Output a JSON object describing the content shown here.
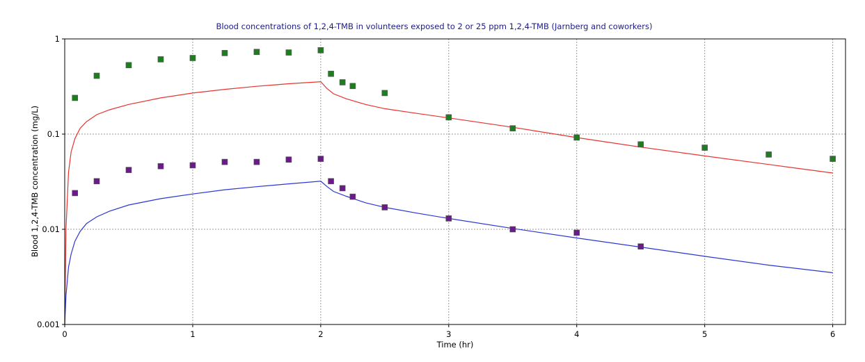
{
  "chart_data": {
    "type": "scatter",
    "title": "Blood concentrations of 1,2,4-TMB in volunteers exposed to 2 or 25 ppm 1,2,4-TMB (Jarnberg and coworkers)",
    "xlabel": "Time (hr)",
    "ylabel": "Blood 1,2,4-TMB concentration (mg/L)",
    "xlim": [
      0,
      6.1
    ],
    "ylim": [
      0.001,
      1
    ],
    "yscale": "log",
    "grid": true,
    "x_ticks": [
      0,
      1,
      2,
      3,
      4,
      5,
      6
    ],
    "x_tick_labels": [
      "0",
      "1",
      "2",
      "3",
      "4",
      "5",
      "6"
    ],
    "y_ticks": [
      0.001,
      0.01,
      0.1,
      1
    ],
    "y_tick_labels": [
      "0.001",
      "0.01",
      "0.1",
      "1"
    ],
    "series": [
      {
        "kind": "line",
        "color": "#e8322e",
        "x": [
          0,
          0.01,
          0.03,
          0.05,
          0.08,
          0.12,
          0.17,
          0.25,
          0.35,
          0.5,
          0.75,
          1.0,
          1.25,
          1.5,
          1.75,
          2.0,
          2.05,
          2.1,
          2.2,
          2.35,
          2.5,
          2.75,
          3.0,
          3.5,
          4.0,
          4.5,
          5.0,
          5.5,
          6.0
        ],
        "y": [
          0.001,
          0.01,
          0.04,
          0.065,
          0.09,
          0.115,
          0.135,
          0.16,
          0.18,
          0.205,
          0.24,
          0.27,
          0.295,
          0.318,
          0.338,
          0.355,
          0.3,
          0.265,
          0.235,
          0.205,
          0.185,
          0.165,
          0.148,
          0.118,
          0.092,
          0.073,
          0.059,
          0.048,
          0.039
        ]
      },
      {
        "kind": "line",
        "color": "#2b35d6",
        "x": [
          0,
          0.01,
          0.03,
          0.05,
          0.08,
          0.12,
          0.17,
          0.25,
          0.35,
          0.5,
          0.75,
          1.0,
          1.25,
          1.5,
          1.75,
          2.0,
          2.05,
          2.1,
          2.2,
          2.35,
          2.5,
          2.75,
          3.0,
          3.5,
          4.0,
          4.5,
          5.0,
          5.5,
          6.0
        ],
        "y": [
          0.001,
          0.002,
          0.004,
          0.0055,
          0.0075,
          0.0095,
          0.0115,
          0.0135,
          0.0155,
          0.018,
          0.021,
          0.0235,
          0.026,
          0.028,
          0.03,
          0.032,
          0.028,
          0.025,
          0.0222,
          0.019,
          0.017,
          0.0148,
          0.013,
          0.0102,
          0.0081,
          0.0065,
          0.0052,
          0.0042,
          0.0035
        ]
      },
      {
        "kind": "points",
        "color": "#1e7d1e",
        "x": [
          0.08,
          0.25,
          0.5,
          0.75,
          1.0,
          1.25,
          1.5,
          1.75,
          2.0,
          2.08,
          2.17,
          2.25,
          2.5,
          3.0,
          3.5,
          4.0,
          4.5,
          5.0,
          5.5,
          6.0
        ],
        "y": [
          0.24,
          0.41,
          0.53,
          0.61,
          0.63,
          0.71,
          0.73,
          0.72,
          0.76,
          0.43,
          0.35,
          0.32,
          0.27,
          0.15,
          0.115,
          0.092,
          0.078,
          0.072,
          0.061,
          0.055
        ]
      },
      {
        "kind": "points",
        "color": "#6a1a8a",
        "x": [
          0.08,
          0.25,
          0.5,
          0.75,
          1.0,
          1.25,
          1.5,
          1.75,
          2.0,
          2.08,
          2.17,
          2.25,
          2.5,
          3.0,
          3.5,
          4.0,
          4.5
        ],
        "y": [
          0.024,
          0.032,
          0.042,
          0.046,
          0.047,
          0.051,
          0.051,
          0.054,
          0.055,
          0.032,
          0.027,
          0.022,
          0.017,
          0.013,
          0.01,
          0.0092,
          0.0066
        ]
      }
    ]
  }
}
